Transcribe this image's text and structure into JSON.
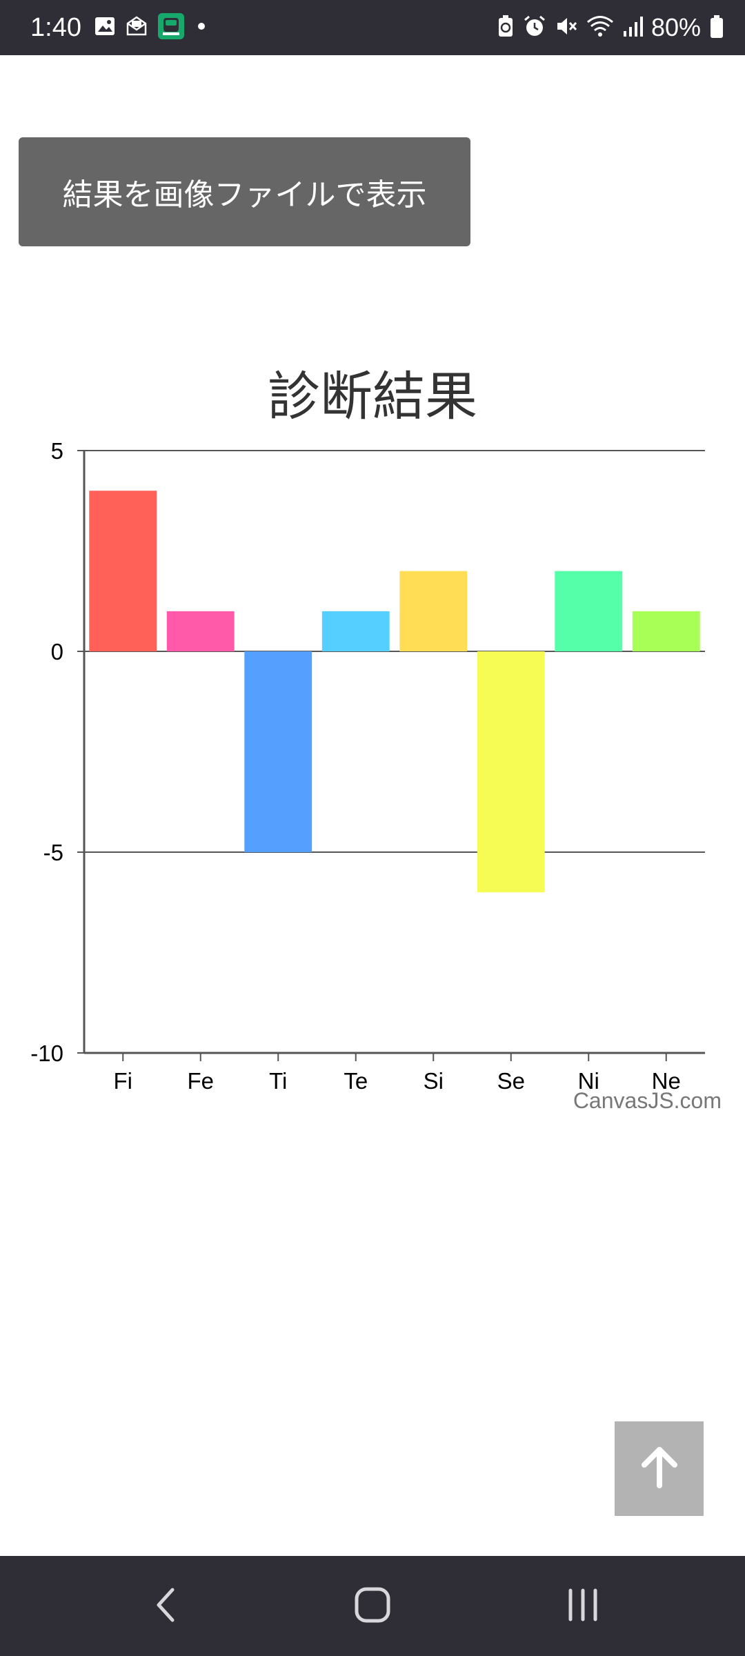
{
  "status_bar": {
    "time": "1:40",
    "battery_percent": "80%",
    "left_icons": [
      "image-icon",
      "mail-icon",
      "app-icon",
      "dot-icon"
    ],
    "right_icons": [
      "battery-saver-icon",
      "alarm-icon",
      "mute-icon",
      "wifi-icon",
      "signal-icon",
      "battery-icon"
    ]
  },
  "main": {
    "image_button_label": "結果を画像ファイルで表示"
  },
  "chart_data": {
    "type": "bar",
    "title": "診断結果",
    "categories": [
      "Fi",
      "Fe",
      "Ti",
      "Te",
      "Si",
      "Se",
      "Ni",
      "Ne"
    ],
    "values": [
      4,
      1,
      -5,
      1,
      2,
      -6,
      2,
      1
    ],
    "colors": [
      "#ff6159",
      "#ff5aaa",
      "#55a0ff",
      "#55cfff",
      "#ffdd55",
      "#f7fc55",
      "#55ffaa",
      "#a8ff55"
    ],
    "ylim": [
      -10,
      5
    ],
    "yticks": [
      "5",
      "0",
      "-5",
      "-10"
    ],
    "grid": true,
    "credit": "CanvasJS.com"
  },
  "floating": {
    "scroll_top_icon": "arrow-up-icon"
  },
  "nav_bar": {
    "buttons": [
      "back-icon",
      "home-icon",
      "recents-icon"
    ]
  }
}
